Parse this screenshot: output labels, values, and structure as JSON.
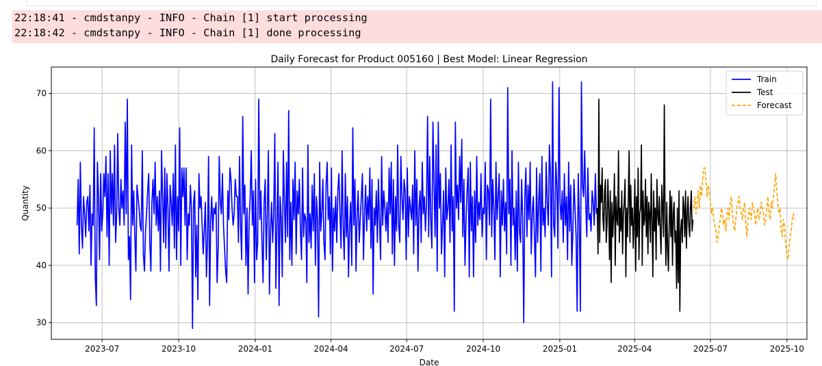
{
  "log": {
    "lines": [
      "22:18:41 - cmdstanpy - INFO - Chain [1] start processing",
      "22:18:42 - cmdstanpy - INFO - Chain [1] done processing"
    ],
    "background": "#ffdddd"
  },
  "chart_data": {
    "type": "line",
    "title": "Daily Forecast for Product 005160 | Best Model: Linear Regression",
    "xlabel": "Date",
    "ylabel": "Quantity",
    "x_range": [
      "2023-05-01",
      "2025-10-25"
    ],
    "ylim": [
      27.1,
      74.6
    ],
    "x_ticks": [
      "2023-07",
      "2023-10",
      "2024-01",
      "2024-04",
      "2024-07",
      "2024-10",
      "2025-01",
      "2025-04",
      "2025-07",
      "2025-10"
    ],
    "y_ticks": [
      30,
      40,
      50,
      60,
      70
    ],
    "grid": true,
    "legend_position": "top-right",
    "series": [
      {
        "name": "Train",
        "color": "#0000ff",
        "style": "solid",
        "start": "2023-06-01",
        "end": "2025-02-14",
        "values": [
          47,
          55,
          42,
          58,
          47,
          43,
          52,
          49,
          45,
          51,
          52,
          46,
          54,
          40,
          49,
          47,
          64,
          38,
          33,
          58,
          52,
          41,
          56,
          46,
          49,
          56,
          52,
          59,
          45,
          56,
          40,
          60,
          49,
          56,
          47,
          61,
          44,
          49,
          63,
          50,
          47,
          55,
          50,
          53,
          47,
          65,
          49,
          69,
          41,
          45,
          34,
          61,
          47,
          53,
          45,
          39,
          54,
          52,
          50,
          47,
          46,
          60,
          42,
          39,
          46,
          49,
          53,
          56,
          44,
          39,
          51,
          55,
          49,
          58,
          47,
          52,
          46,
          53,
          39,
          60,
          52,
          44,
          57,
          43,
          56,
          50,
          39,
          54,
          51,
          47,
          56,
          43,
          61,
          41,
          52,
          46,
          64,
          40,
          57,
          52,
          57,
          47,
          57,
          41,
          49,
          47,
          54,
          50,
          29,
          51,
          53,
          38,
          47,
          34,
          56,
          50,
          52,
          47,
          42,
          46,
          51,
          38,
          44,
          59,
          33,
          48,
          52,
          46,
          50,
          49,
          51,
          37,
          43,
          59,
          51,
          49,
          56,
          47,
          43,
          39,
          37,
          53,
          48,
          57,
          55,
          50,
          47,
          49,
          55,
          52,
          52,
          44,
          59,
          47,
          41,
          66,
          49,
          54,
          40,
          50,
          35,
          48,
          52,
          60,
          47,
          53,
          37,
          55,
          41,
          44,
          69,
          48,
          53,
          44,
          37,
          51,
          55,
          41,
          49,
          60,
          35,
          46,
          51,
          44,
          49,
          63,
          36,
          47,
          58,
          33,
          52,
          48,
          38,
          60,
          51,
          44,
          58,
          45,
          67,
          41,
          51,
          40,
          55,
          48,
          58,
          42,
          53,
          49,
          55,
          46,
          41,
          57,
          45,
          49,
          48,
          37,
          61,
          44,
          49,
          43,
          54,
          46,
          56,
          40,
          52,
          48,
          31,
          58,
          46,
          49,
          55,
          44,
          41,
          54,
          58,
          48,
          52,
          42,
          57,
          39,
          50,
          46,
          52,
          44,
          53,
          56,
          49,
          43,
          60,
          47,
          41,
          56,
          45,
          52,
          38,
          47,
          51,
          40,
          64,
          47,
          55,
          39,
          49,
          53,
          44,
          48,
          52,
          56,
          41,
          49,
          54,
          46,
          52,
          48,
          57,
          43,
          55,
          35,
          50,
          47,
          53,
          44,
          55,
          48,
          41,
          59,
          47,
          53,
          50,
          46,
          51,
          44,
          57,
          49,
          58,
          42,
          55,
          40,
          52,
          46,
          61,
          47,
          44,
          59,
          52,
          48,
          55,
          53,
          41,
          57,
          45,
          52,
          50,
          48,
          54,
          42,
          60,
          47,
          55,
          39,
          50,
          53,
          44,
          58,
          49,
          52,
          46,
          51,
          66,
          45,
          59,
          48,
          43,
          65,
          55,
          45,
          61,
          39,
          65,
          50,
          56,
          42,
          47,
          53,
          38,
          57,
          48,
          50,
          55,
          44,
          61,
          46,
          52,
          32,
          65,
          50,
          54,
          48,
          59,
          51,
          62,
          45,
          55,
          40,
          48,
          53,
          57,
          38,
          58,
          46,
          52,
          38,
          53,
          44,
          59,
          47,
          51,
          48,
          56,
          45,
          50,
          49,
          58,
          41,
          54,
          53,
          47,
          69,
          45,
          55,
          50,
          41,
          58,
          48,
          52,
          56,
          38,
          53,
          47,
          55,
          46,
          51,
          42,
          71,
          49,
          55,
          40,
          60,
          47,
          50,
          41,
          53,
          39,
          58,
          46,
          44,
          55,
          48,
          30,
          52,
          57,
          45,
          54,
          48,
          58,
          42,
          49,
          52,
          45,
          38,
          57,
          44,
          51,
          56,
          39,
          59,
          47,
          50,
          45,
          58,
          51,
          47,
          61,
          56,
          38,
          72,
          47,
          45,
          58,
          54,
          43,
          71,
          51,
          48,
          53,
          44,
          56,
          47,
          52,
          41,
          58,
          46,
          54,
          40,
          46,
          55,
          50,
          45,
          32,
          56,
          48,
          32,
          72,
          54,
          52,
          60,
          51,
          45,
          57,
          48,
          49,
          46,
          53,
          51,
          47,
          56,
          49
        ]
      },
      {
        "name": "Test",
        "color": "#000000",
        "style": "solid",
        "start": "2025-02-15",
        "end": "2025-06-10",
        "values": [
          50,
          42,
          69,
          44,
          54,
          51,
          57,
          48,
          46,
          53,
          55,
          44,
          47,
          55,
          50,
          41,
          53,
          37,
          51,
          45,
          49,
          56,
          40,
          52,
          48,
          47,
          60,
          44,
          50,
          46,
          53,
          42,
          49,
          51,
          55,
          38,
          50,
          45,
          52,
          60,
          44,
          54,
          47,
          50,
          43,
          48,
          55,
          39,
          52,
          45,
          57,
          41,
          49,
          50,
          61,
          40,
          53,
          47,
          48,
          55,
          45,
          52,
          42,
          51,
          49,
          44,
          56,
          48,
          38,
          53,
          46,
          50,
          41,
          55,
          49,
          47,
          52,
          46,
          42,
          54,
          50,
          45,
          68,
          48,
          40,
          51,
          43,
          39,
          47,
          53,
          45,
          52,
          40,
          49,
          51,
          44,
          46,
          36,
          50,
          37,
          53,
          32,
          46,
          48,
          44,
          52,
          50,
          45,
          53,
          43,
          49,
          52,
          47,
          45,
          50,
          53,
          46,
          48
        ]
      },
      {
        "name": "Forecast",
        "color": "#ffa500",
        "style": "dashed",
        "start": "2025-06-11",
        "end": "2025-10-10",
        "values": [
          50,
          52,
          49,
          51,
          53,
          50,
          54,
          52,
          55,
          57,
          57,
          55,
          52,
          54,
          53,
          51,
          49,
          50,
          48,
          47,
          46,
          44,
          45,
          47,
          48,
          50,
          49,
          47,
          48,
          46,
          49,
          50,
          48,
          51,
          52,
          49,
          47,
          46,
          48,
          50,
          51,
          52,
          50,
          49,
          48,
          50,
          51,
          47,
          45,
          48,
          50,
          49,
          48,
          51,
          50,
          49,
          47,
          49,
          50,
          48,
          49,
          51,
          50,
          49,
          47,
          48,
          50,
          52,
          49,
          48,
          51,
          50,
          52,
          54,
          56,
          53,
          51,
          49,
          50,
          46,
          45,
          48,
          47,
          44,
          42,
          41,
          43,
          45,
          46,
          48,
          49,
          48
        ]
      }
    ]
  }
}
